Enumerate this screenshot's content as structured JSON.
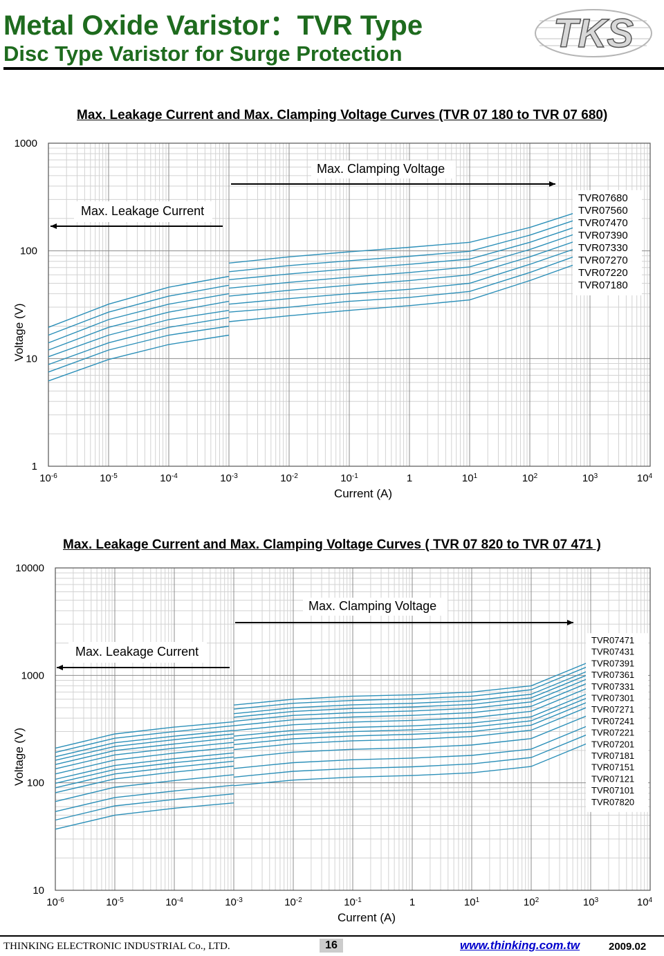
{
  "header": {
    "title": "Metal Oxide Varistor：TVR Type",
    "subtitle": "Disc Type Varistor for Surge Protection",
    "logo_text": "TKS"
  },
  "chart_data": [
    {
      "type": "line",
      "title": "Max. Leakage Current and Max. Clamping  Voltage Curves   (TVR 07 180 to TVR 07 680)",
      "xlabel": "Current (A)",
      "ylabel": "Voltage    (V)",
      "x_scale": "log",
      "y_scale": "log",
      "xlim": [
        1e-06,
        10000
      ],
      "ylim": [
        1,
        1000
      ],
      "x_ticks": [
        {
          "base": "10",
          "exp": "-6"
        },
        {
          "base": "10",
          "exp": "-5"
        },
        {
          "base": "10",
          "exp": "-4"
        },
        {
          "base": "10",
          "exp": "-3"
        },
        {
          "base": "10",
          "exp": "-2"
        },
        {
          "base": "10",
          "exp": "-1"
        },
        {
          "base": "1",
          "exp": ""
        },
        {
          "base": "10",
          "exp": "1"
        },
        {
          "base": "10",
          "exp": "2"
        },
        {
          "base": "10",
          "exp": "3"
        },
        {
          "base": "10",
          "exp": "4"
        }
      ],
      "y_ticks": [
        "1",
        "10",
        "100",
        "1000"
      ],
      "annotations": {
        "clamping": "Max. Clamping  Voltage",
        "leakage": "Max. Leakage Current"
      },
      "series_color": "#2b8fb8",
      "legend": [
        "TVR07680",
        "TVR07560",
        "TVR07470",
        "TVR07390",
        "TVR07330",
        "TVR07270",
        "TVR07220",
        "TVR07180"
      ],
      "leakage_x": [
        1e-06,
        1e-05,
        0.0001,
        0.001
      ],
      "clamping_x": [
        0.001,
        0.01,
        0.1,
        1,
        10,
        100,
        1000
      ],
      "series": [
        {
          "leakage": [
            19.5,
            32,
            46,
            58
          ],
          "clamping": [
            77,
            88,
            98,
            108,
            120,
            165,
            250
          ]
        },
        {
          "leakage": [
            16.5,
            27,
            38,
            48
          ],
          "clamping": [
            64,
            73,
            81,
            89,
            99,
            140,
            215
          ]
        },
        {
          "leakage": [
            14,
            23,
            32,
            40
          ],
          "clamping": [
            54,
            61,
            68,
            75,
            84,
            120,
            185
          ]
        },
        {
          "leakage": [
            12,
            19.5,
            27,
            34
          ],
          "clamping": [
            45,
            51,
            57,
            63,
            71,
            103,
            160
          ]
        },
        {
          "leakage": [
            10.4,
            16.5,
            23,
            28
          ],
          "clamping": [
            38,
            43,
            48,
            53,
            60,
            88,
            137
          ]
        },
        {
          "leakage": [
            8.8,
            14,
            19.5,
            24
          ],
          "clamping": [
            32,
            36,
            40,
            44,
            50,
            75,
            117
          ]
        },
        {
          "leakage": [
            7.5,
            12,
            16.5,
            20
          ],
          "clamping": [
            27,
            30,
            34,
            37,
            42,
            63,
            100
          ]
        },
        {
          "leakage": [
            6.2,
            9.8,
            13.5,
            16.5
          ],
          "clamping": [
            22,
            25,
            28,
            31,
            35,
            53,
            84
          ]
        }
      ]
    },
    {
      "type": "line",
      "title": "Max. Leakage Current and Max. Clamping  Voltage Curves   ( TVR 07 820 to TVR 07 471 )",
      "xlabel": "Current (A)",
      "ylabel": "Voltage    (V)",
      "x_scale": "log",
      "y_scale": "log",
      "xlim": [
        1e-06,
        10000
      ],
      "ylim": [
        10,
        10000
      ],
      "x_ticks": [
        {
          "base": "10",
          "exp": "-6"
        },
        {
          "base": "10",
          "exp": "-5"
        },
        {
          "base": "10",
          "exp": "-4"
        },
        {
          "base": "10",
          "exp": "-3"
        },
        {
          "base": "10",
          "exp": "-2"
        },
        {
          "base": "10",
          "exp": "-1"
        },
        {
          "base": "1",
          "exp": ""
        },
        {
          "base": "10",
          "exp": "1"
        },
        {
          "base": "10",
          "exp": "2"
        },
        {
          "base": "10",
          "exp": "3"
        },
        {
          "base": "10",
          "exp": "4"
        }
      ],
      "y_ticks": [
        "10",
        "100",
        "1000",
        "10000"
      ],
      "annotations": {
        "clamping": "Max. Clamping  Voltage",
        "leakage": "Max. Leakage Current"
      },
      "series_color": "#2b8fb8",
      "legend": [
        "TVR07471",
        "TVR07431",
        "TVR07391",
        "TVR07361",
        "TVR07331",
        "TVR07301",
        "TVR07271",
        "TVR07241",
        "TVR07221",
        "TVR07201",
        "TVR07181",
        "TVR07151",
        "TVR07121",
        "TVR07101",
        "TVR07820"
      ],
      "leakage_x": [
        1e-06,
        1e-05,
        0.0001,
        0.001
      ],
      "clamping_x": [
        0.001,
        0.01,
        0.1,
        1,
        10,
        100,
        1000
      ],
      "series": [
        {
          "leakage": [
            210,
            285,
            330,
            370
          ],
          "clamping": [
            530,
            600,
            640,
            660,
            700,
            800,
            1350
          ]
        },
        {
          "leakage": [
            192,
            260,
            300,
            340
          ],
          "clamping": [
            485,
            550,
            585,
            605,
            640,
            735,
            1240
          ]
        },
        {
          "leakage": [
            175,
            236,
            272,
            308
          ],
          "clamping": [
            440,
            500,
            532,
            550,
            582,
            668,
            1125
          ]
        },
        {
          "leakage": [
            162,
            218,
            252,
            285
          ],
          "clamping": [
            408,
            462,
            492,
            508,
            538,
            618,
            1040
          ]
        },
        {
          "leakage": [
            148,
            200,
            230,
            262
          ],
          "clamping": [
            374,
            424,
            450,
            466,
            494,
            566,
            955
          ]
        },
        {
          "leakage": [
            135,
            182,
            210,
            238
          ],
          "clamping": [
            340,
            386,
            410,
            424,
            450,
            515,
            870
          ]
        },
        {
          "leakage": [
            121,
            163,
            189,
            214
          ],
          "clamping": [
            306,
            347,
            368,
            381,
            404,
            463,
            782
          ]
        },
        {
          "leakage": [
            108,
            145,
            168,
            190
          ],
          "clamping": [
            272,
            308,
            328,
            339,
            360,
            412,
            695
          ]
        },
        {
          "leakage": [
            99,
            133,
            154,
            174
          ],
          "clamping": [
            249,
            283,
            300,
            311,
            330,
            378,
            637
          ]
        },
        {
          "leakage": [
            90,
            121,
            140,
            159
          ],
          "clamping": [
            227,
            257,
            273,
            283,
            300,
            344,
            580
          ]
        },
        {
          "leakage": [
            81,
            109,
            126,
            143
          ],
          "clamping": [
            204,
            231,
            246,
            254,
            270,
            309,
            521
          ]
        },
        {
          "leakage": [
            67,
            91,
            105,
            119
          ],
          "clamping": [
            170,
            193,
            205,
            212,
            225,
            258,
            435
          ]
        },
        {
          "leakage": [
            54,
            73,
            84,
            95
          ],
          "clamping": [
            136,
            154,
            164,
            170,
            180,
            206,
            348
          ]
        },
        {
          "leakage": [
            45,
            61,
            70,
            79
          ],
          "clamping": [
            113,
            128,
            136,
            141,
            150,
            172,
            290
          ]
        },
        {
          "leakage": [
            37,
            50,
            58,
            65
          ],
          "clamping": [
            94,
            106,
            113,
            117,
            124,
            142,
            240
          ]
        }
      ]
    }
  ],
  "footer": {
    "company": "THINKING ELECTRONIC INDUSTRIAL Co., LTD.",
    "page": "16",
    "url": "www.thinking.com.tw",
    "date": "2009.02"
  }
}
